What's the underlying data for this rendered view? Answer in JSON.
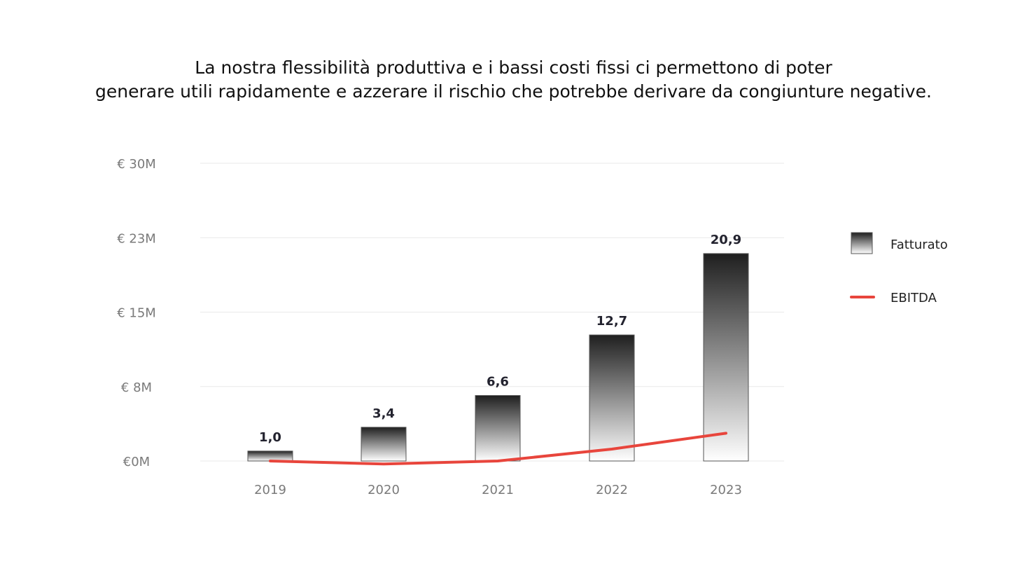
{
  "title": {
    "line1": "La nostra flessibilità produttiva e i bassi costi fissi ci permettono di poter",
    "line2": "generare utili rapidamente e azzerare il rischio che potrebbe derivare da congiunture negative."
  },
  "colors": {
    "bar_top": "#1f1f1f",
    "bar_bottom": "#ffffff",
    "line": "#e8453c",
    "grid": "#e9e9e9",
    "tick_text": "#7a7a7a",
    "label_text": "#23232f"
  },
  "chart_data": {
    "type": "bar",
    "categories": [
      "2019",
      "2020",
      "2021",
      "2022",
      "2023"
    ],
    "series": [
      {
        "name": "Fatturato",
        "type": "bar",
        "values": [
          1.0,
          3.4,
          6.6,
          12.7,
          20.9
        ],
        "labels": [
          "1,0",
          "3,4",
          "6,6",
          "12,7",
          "20,9"
        ]
      },
      {
        "name": "EBITDA",
        "type": "line",
        "values": [
          0.0,
          -0.3,
          0.0,
          1.2,
          2.8
        ]
      }
    ],
    "yticks": [
      {
        "value": 0,
        "label": "€0M"
      },
      {
        "value": 7.5,
        "label": "€ 8M"
      },
      {
        "value": 15,
        "label": "€ 15M"
      },
      {
        "value": 22.5,
        "label": "€ 23M"
      },
      {
        "value": 30,
        "label": "€ 30M"
      }
    ],
    "ylim": [
      0,
      30
    ],
    "grid": true,
    "legend": "right"
  }
}
